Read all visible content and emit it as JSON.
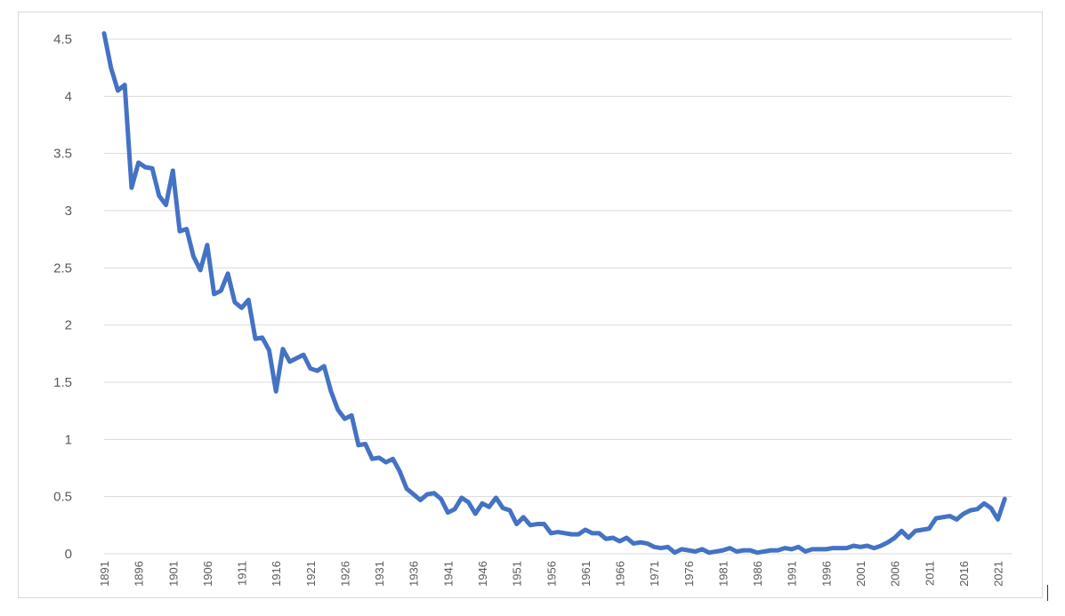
{
  "chart_data": {
    "type": "line",
    "title": "",
    "xlabel": "",
    "ylabel": "",
    "ylim": [
      0,
      4.5
    ],
    "xlim": [
      1891,
      2023
    ],
    "y_ticks": [
      "0",
      "0.5",
      "1",
      "1.5",
      "2",
      "2.5",
      "3",
      "3.5",
      "4",
      "4.5"
    ],
    "x_ticks": [
      "1891",
      "1896",
      "1901",
      "1906",
      "1911",
      "1916",
      "1921",
      "1926",
      "1931",
      "1936",
      "1941",
      "1946",
      "1951",
      "1956",
      "1961",
      "1966",
      "1971",
      "1976",
      "1981",
      "1986",
      "1991",
      "1996",
      "2001",
      "2006",
      "2011",
      "2016",
      "2021"
    ],
    "grid": true,
    "legend": "none",
    "series": [
      {
        "color": "#4472c4",
        "x": [
          1891,
          1892,
          1893,
          1894,
          1895,
          1896,
          1897,
          1898,
          1899,
          1900,
          1901,
          1902,
          1903,
          1904,
          1905,
          1906,
          1907,
          1908,
          1909,
          1910,
          1911,
          1912,
          1913,
          1914,
          1915,
          1916,
          1917,
          1918,
          1919,
          1920,
          1921,
          1922,
          1923,
          1924,
          1925,
          1926,
          1927,
          1928,
          1929,
          1930,
          1931,
          1932,
          1933,
          1934,
          1935,
          1936,
          1937,
          1938,
          1939,
          1940,
          1941,
          1942,
          1943,
          1944,
          1945,
          1946,
          1947,
          1948,
          1949,
          1950,
          1951,
          1952,
          1953,
          1954,
          1955,
          1956,
          1957,
          1958,
          1959,
          1960,
          1961,
          1962,
          1963,
          1964,
          1965,
          1966,
          1967,
          1968,
          1969,
          1970,
          1971,
          1972,
          1973,
          1974,
          1975,
          1976,
          1977,
          1978,
          1979,
          1980,
          1981,
          1982,
          1983,
          1984,
          1985,
          1986,
          1987,
          1988,
          1989,
          1990,
          1991,
          1992,
          1993,
          1994,
          1995,
          1996,
          1997,
          1998,
          1999,
          2000,
          2001,
          2002,
          2003,
          2004,
          2005,
          2006,
          2007,
          2008,
          2009,
          2010,
          2011,
          2012,
          2013,
          2014,
          2015,
          2016,
          2017,
          2018,
          2019,
          2020,
          2021,
          2022
        ],
        "values": [
          4.55,
          4.25,
          4.05,
          4.1,
          3.2,
          3.42,
          3.38,
          3.37,
          3.13,
          3.05,
          3.35,
          2.82,
          2.84,
          2.6,
          2.48,
          2.7,
          2.27,
          2.3,
          2.45,
          2.2,
          2.15,
          2.22,
          1.88,
          1.89,
          1.78,
          1.42,
          1.79,
          1.68,
          1.71,
          1.74,
          1.62,
          1.6,
          1.64,
          1.42,
          1.26,
          1.18,
          1.21,
          0.95,
          0.96,
          0.83,
          0.84,
          0.8,
          0.83,
          0.72,
          0.57,
          0.52,
          0.47,
          0.52,
          0.53,
          0.48,
          0.36,
          0.39,
          0.49,
          0.45,
          0.35,
          0.44,
          0.41,
          0.49,
          0.4,
          0.38,
          0.26,
          0.32,
          0.25,
          0.26,
          0.26,
          0.18,
          0.19,
          0.18,
          0.17,
          0.17,
          0.21,
          0.18,
          0.18,
          0.13,
          0.14,
          0.11,
          0.14,
          0.09,
          0.1,
          0.09,
          0.06,
          0.05,
          0.06,
          0.01,
          0.04,
          0.03,
          0.02,
          0.04,
          0.01,
          0.02,
          0.03,
          0.05,
          0.02,
          0.03,
          0.03,
          0.01,
          0.02,
          0.03,
          0.03,
          0.05,
          0.04,
          0.06,
          0.02,
          0.04,
          0.04,
          0.04,
          0.05,
          0.05,
          0.05,
          0.07,
          0.06,
          0.07,
          0.05,
          0.07,
          0.1,
          0.14,
          0.2,
          0.14,
          0.2,
          0.21,
          0.22,
          0.31,
          0.32,
          0.33,
          0.3,
          0.35,
          0.38,
          0.39,
          0.44,
          0.4,
          0.3,
          0.48
        ]
      }
    ]
  }
}
